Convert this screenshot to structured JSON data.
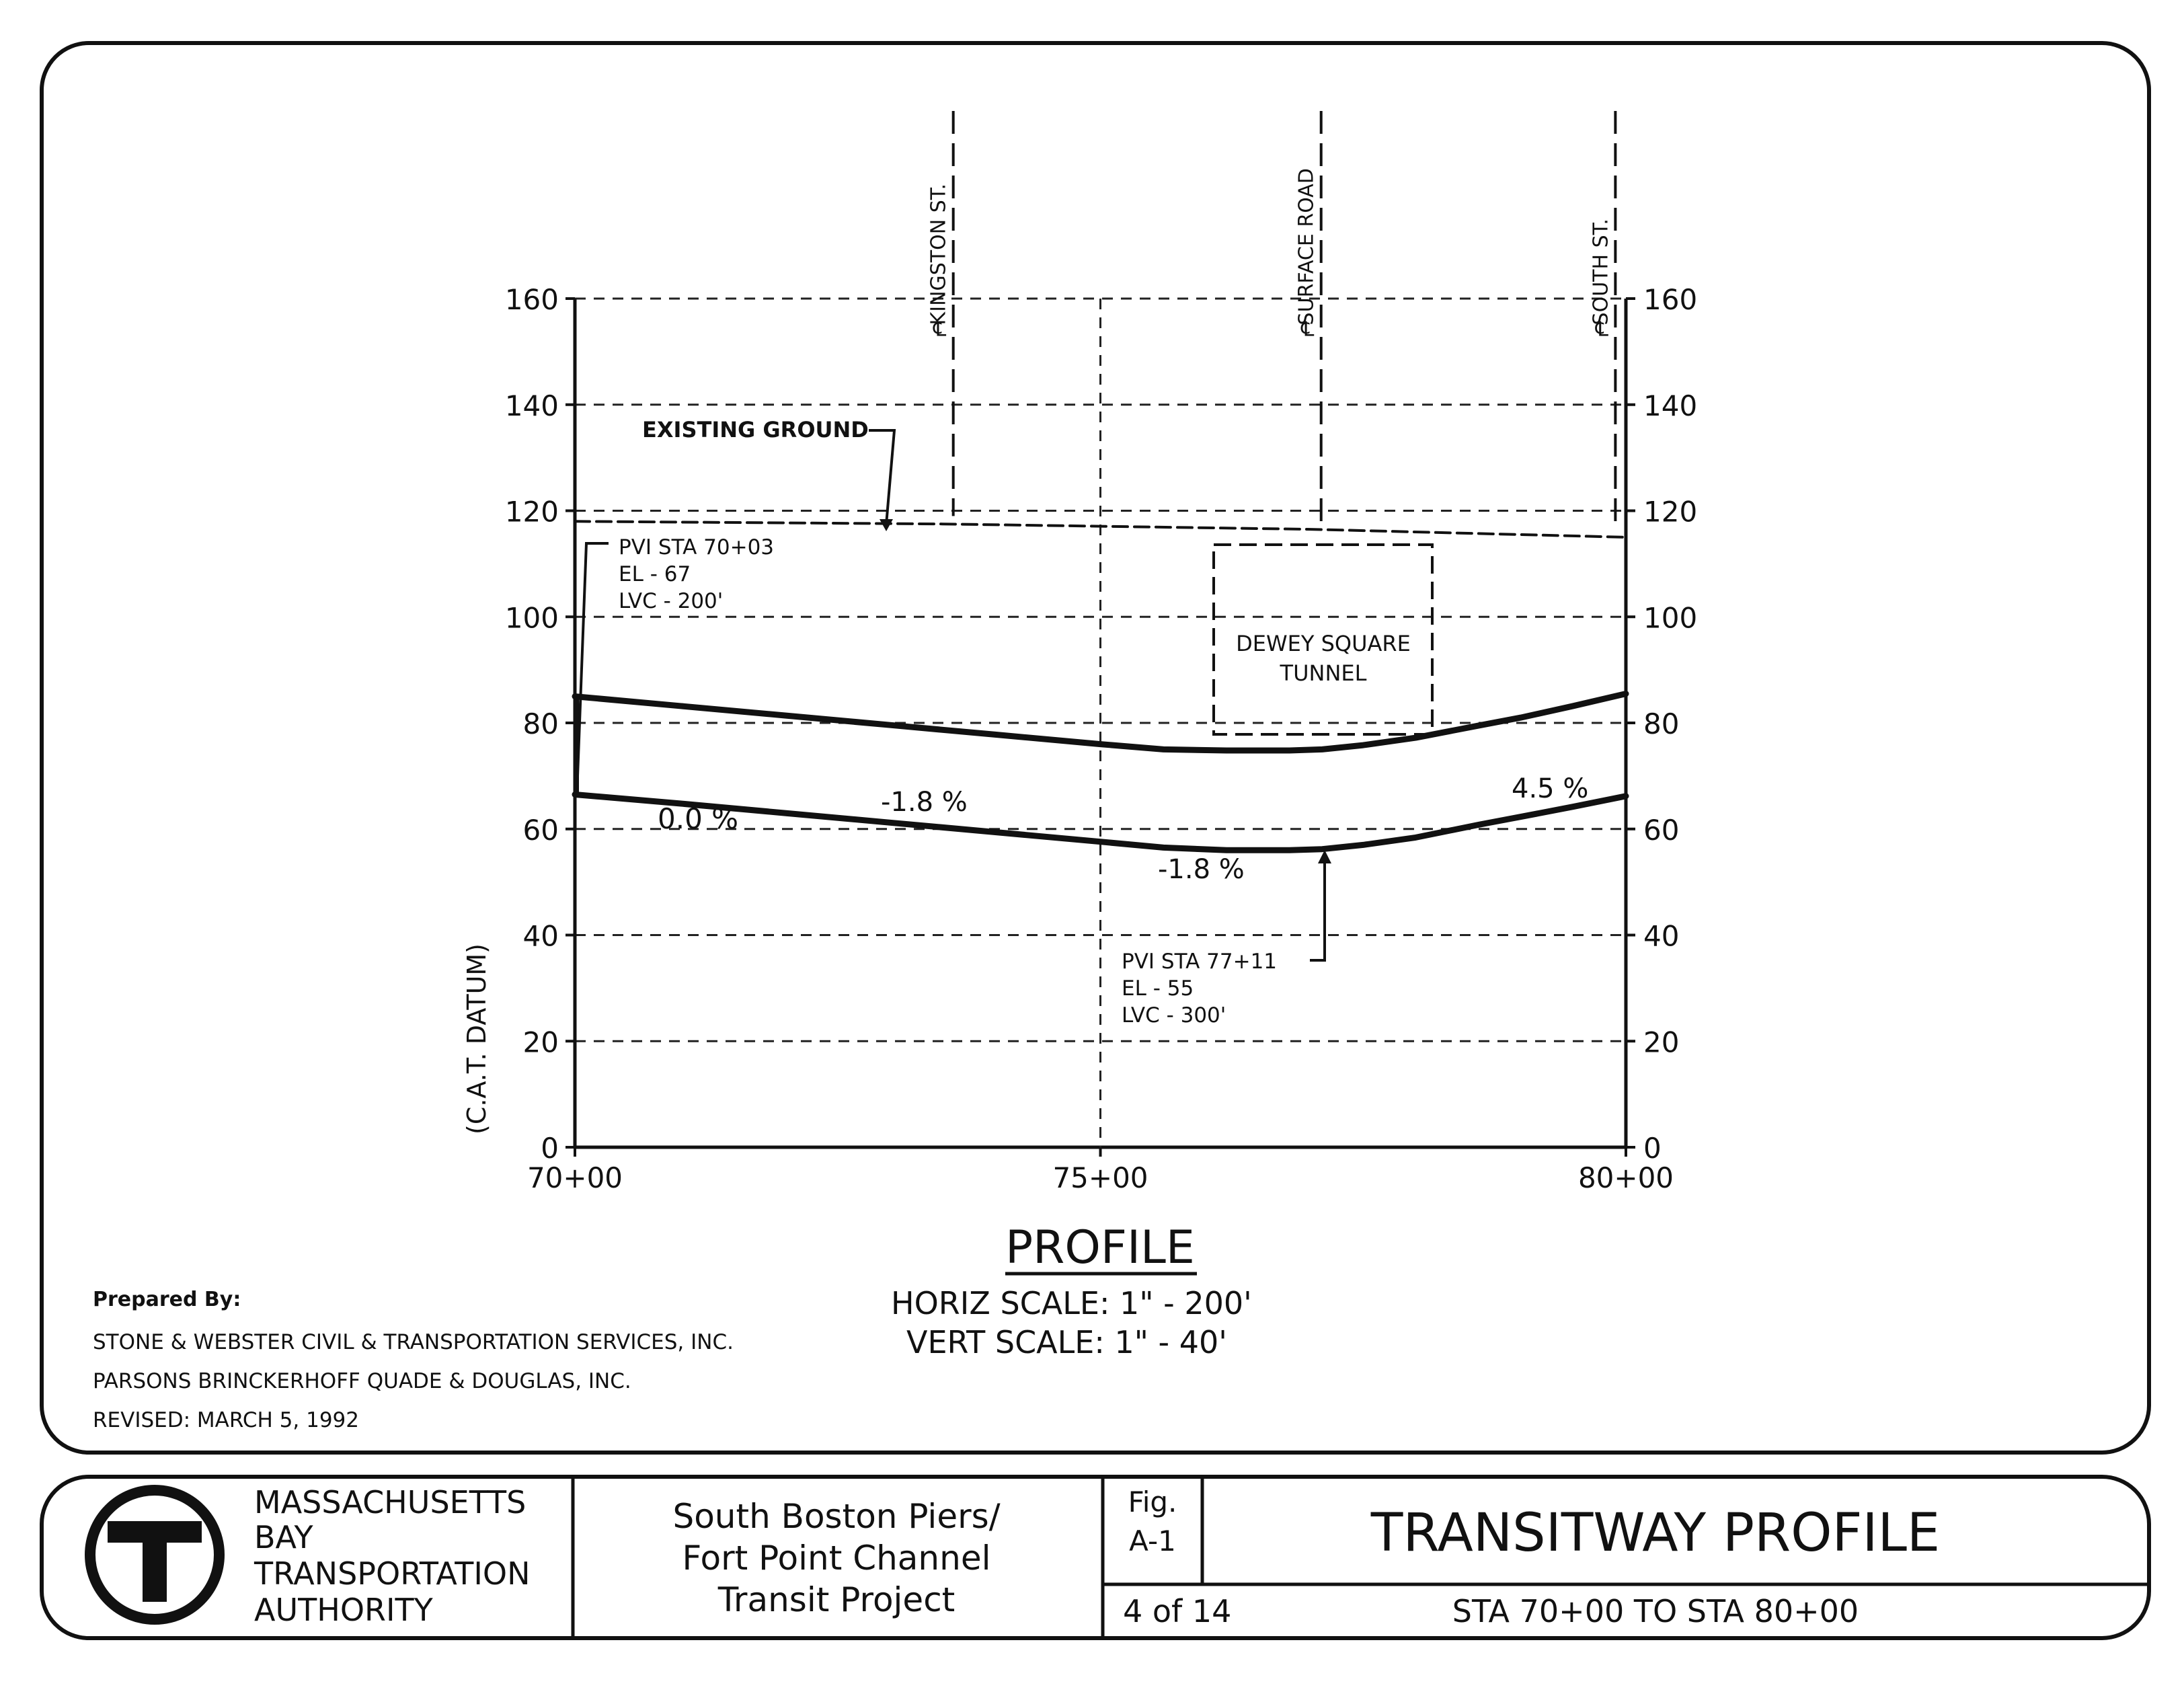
{
  "chart_data": {
    "type": "line",
    "title": "PROFILE",
    "ylabel": "(C.A.T. DATUM)",
    "xlabel": "",
    "x_range": [
      "70+00",
      "80+00"
    ],
    "x_ticks": [
      "70+00",
      "75+00",
      "80+00"
    ],
    "y_range": [
      0,
      160
    ],
    "y_ticks": [
      "0",
      "20",
      "40",
      "60",
      "80",
      "100",
      "120",
      "140",
      "160"
    ],
    "grid": true,
    "series": [
      {
        "name": "EXISTING GROUND",
        "style": "dashed",
        "x": [
          7000,
          7350,
          7700,
          8000
        ],
        "y": [
          118,
          117.5,
          116.5,
          115
        ]
      },
      {
        "name": "",
        "style": "solid",
        "x": [
          7000,
          7100,
          7200,
          7300,
          7400,
          7500,
          7560,
          7620,
          7680,
          7711,
          7750,
          7800,
          7860,
          7900,
          7950,
          8000
        ],
        "y": [
          85,
          83.2,
          81.4,
          79.6,
          77.8,
          76,
          75,
          74.8,
          74.8,
          75,
          75.8,
          77.2,
          79.5,
          81,
          83.2,
          85.5
        ]
      },
      {
        "name": "",
        "style": "solid",
        "x": [
          7000,
          7100,
          7200,
          7300,
          7400,
          7500,
          7560,
          7620,
          7680,
          7711,
          7750,
          7800,
          7860,
          7900,
          7950,
          8000
        ],
        "y": [
          66.5,
          64.8,
          63,
          61.2,
          59.4,
          57.6,
          56.5,
          56,
          56,
          56.2,
          57,
          58.4,
          60.8,
          62.3,
          64.2,
          66.2
        ]
      }
    ],
    "cross_streets": [
      {
        "label": "KINGSTON ST.",
        "station": 7360,
        "bottom_el": 119
      },
      {
        "label": "SURFACE ROAD",
        "station": 7710,
        "bottom_el": 118
      },
      {
        "label": "SOUTH ST.",
        "station": 7990,
        "bottom_el": 118
      }
    ],
    "annotations": {
      "existing_ground": "EXISTING GROUND",
      "pvi1": [
        "PVI STA 70+03",
        "EL - 67",
        "LVC - 200'"
      ],
      "pvi2": [
        "PVI STA 77+11",
        "EL - 55",
        "LVC - 300'"
      ],
      "tunnel": [
        "DEWEY SQUARE",
        "TUNNEL"
      ],
      "grades": [
        "0.0 %",
        "-1.8 %",
        "-1.8 %",
        "4.5 %"
      ],
      "centerline": "℄"
    }
  },
  "scale": {
    "horiz": "HORIZ SCALE: 1\"  - 200'",
    "vert": "VERT SCALE: 1\"  - 40'"
  },
  "prepared": {
    "heading": "Prepared By:",
    "line1": "STONE & WEBSTER CIVIL & TRANSPORTATION SERVICES, INC.",
    "line2": "PARSONS BRINCKERHOFF QUADE & DOUGLAS, INC.",
    "revised": "REVISED: MARCH 5, 1992"
  },
  "title_block": {
    "logo_letter": "T",
    "authority": [
      "MASSACHUSETTS",
      "BAY",
      "TRANSPORTATION",
      "AUTHORITY"
    ],
    "project": [
      "South Boston Piers/",
      "Fort Point Channel",
      "Transit Project"
    ],
    "fig_label": "Fig.",
    "fig_number": "A-1",
    "sheet": "4 of 14",
    "drawing_title": "TRANSITWAY PROFILE",
    "station_range": "STA 70+00 TO STA 80+00"
  }
}
